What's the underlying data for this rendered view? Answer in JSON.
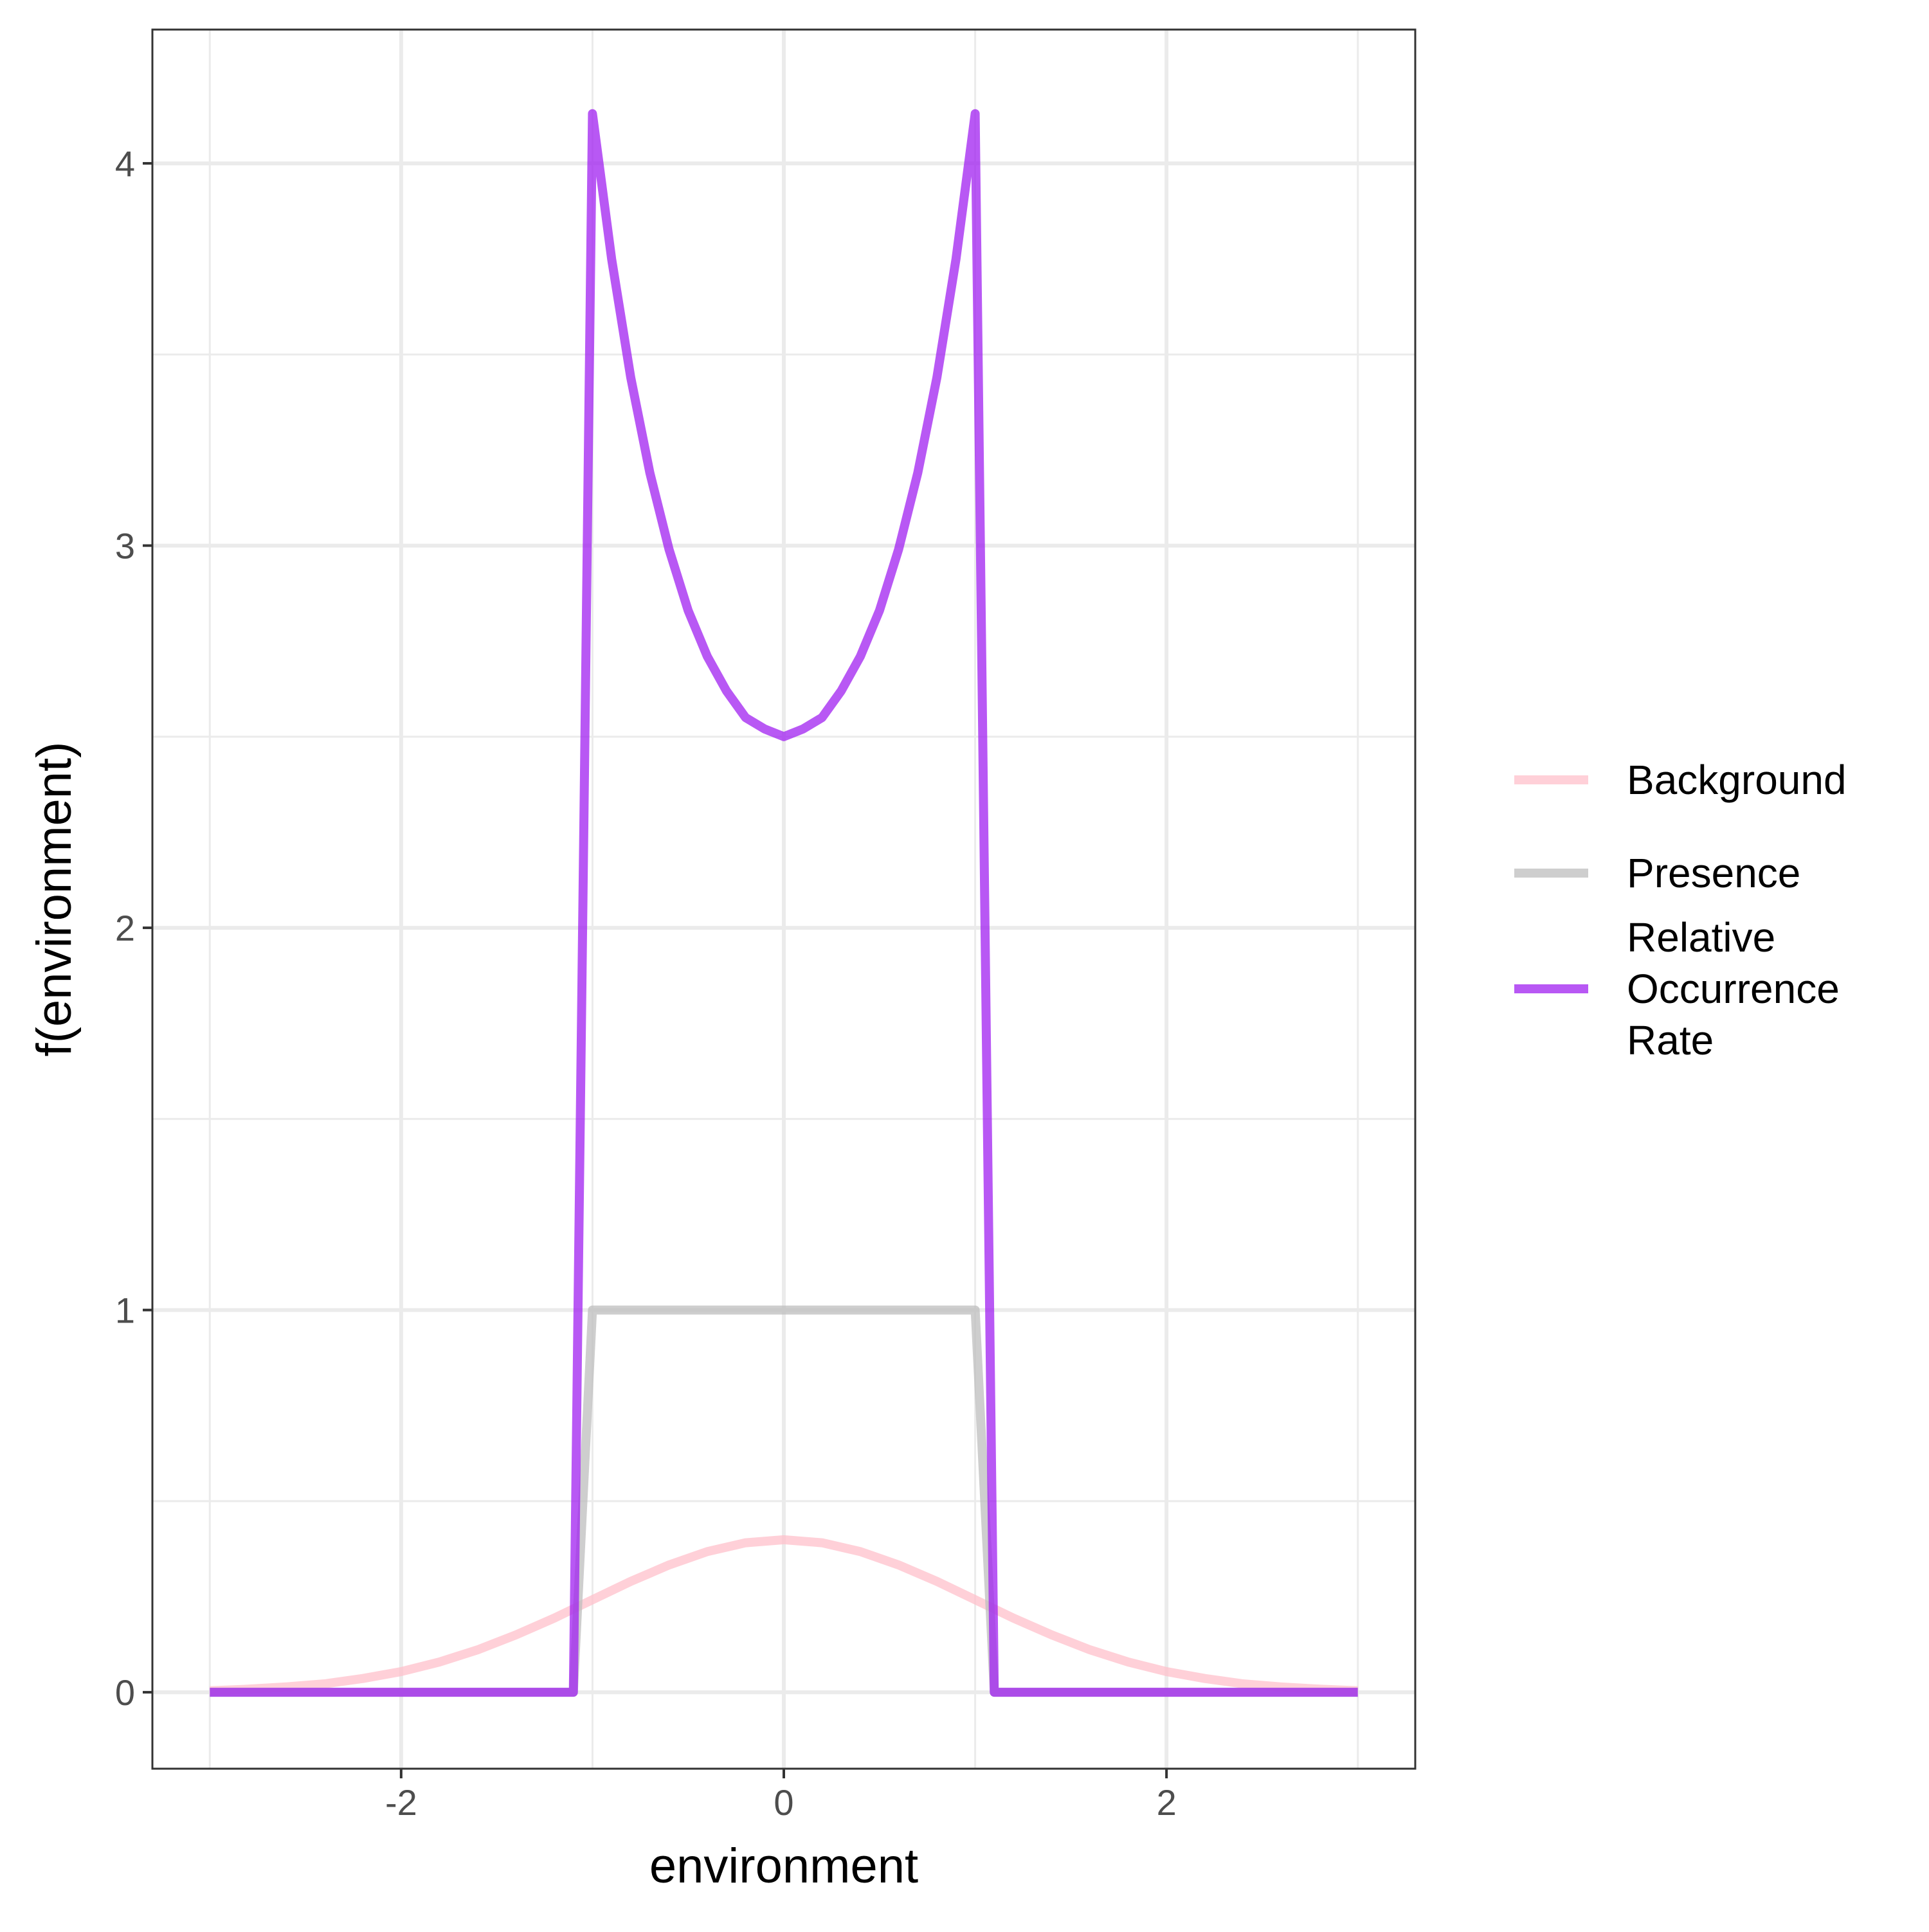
{
  "chart_data": {
    "type": "line",
    "title": "",
    "xlabel": "environment",
    "ylabel": "f(environment)",
    "xlim": [
      -3.3,
      3.3
    ],
    "ylim": [
      -0.2,
      4.35
    ],
    "x_ticks": [
      -2,
      0,
      2
    ],
    "x_tick_labels": [
      "-2",
      "0",
      "2"
    ],
    "y_ticks": [
      0,
      1,
      2,
      3,
      4
    ],
    "y_tick_labels": [
      "0",
      "1",
      "2",
      "3",
      "4"
    ],
    "x_minor_grid": [
      -3,
      -1,
      1,
      3
    ],
    "y_minor_grid": [
      0.5,
      1.5,
      2.5,
      3.5
    ],
    "grid": true,
    "legend_position": "right",
    "series": [
      {
        "name": "Background",
        "color": "#ffc0cb",
        "opacity": 0.75,
        "x": [
          -3,
          -2.8,
          -2.6,
          -2.4,
          -2.2,
          -2,
          -1.8,
          -1.6,
          -1.4,
          -1.2,
          -1,
          -0.8,
          -0.6,
          -0.4,
          -0.2,
          0,
          0.2,
          0.4,
          0.6,
          0.8,
          1,
          1.2,
          1.4,
          1.6,
          1.8,
          2,
          2.2,
          2.4,
          2.6,
          2.8,
          3
        ],
        "y": [
          0.004,
          0.008,
          0.014,
          0.022,
          0.036,
          0.054,
          0.079,
          0.111,
          0.15,
          0.194,
          0.242,
          0.29,
          0.333,
          0.368,
          0.391,
          0.399,
          0.391,
          0.368,
          0.333,
          0.29,
          0.242,
          0.194,
          0.15,
          0.111,
          0.079,
          0.054,
          0.036,
          0.022,
          0.014,
          0.008,
          0.004
        ]
      },
      {
        "name": "Presence",
        "color": "#bebebe",
        "opacity": 0.75,
        "x": [
          -3,
          -1.1,
          -1,
          1,
          1.1,
          3
        ],
        "y": [
          0,
          0,
          1,
          1,
          0,
          0
        ]
      },
      {
        "name": "Relative\nOccurrence\nRate",
        "color": "#a020f0",
        "opacity": 0.75,
        "x": [
          -3,
          -1.1,
          -1.0,
          -0.9,
          -0.8,
          -0.7,
          -0.6,
          -0.5,
          -0.4,
          -0.3,
          -0.2,
          -0.1,
          0,
          0.1,
          0.2,
          0.3,
          0.4,
          0.5,
          0.6,
          0.7,
          0.8,
          0.9,
          1.0,
          1.1,
          3
        ],
        "y": [
          0,
          0,
          4.13,
          3.75,
          3.44,
          3.19,
          2.99,
          2.83,
          2.71,
          2.62,
          2.55,
          2.52,
          2.5,
          2.52,
          2.55,
          2.62,
          2.71,
          2.83,
          2.99,
          3.19,
          3.44,
          3.75,
          4.13,
          0,
          0
        ]
      }
    ]
  },
  "legend": {
    "items": [
      {
        "lines": [
          "Background"
        ]
      },
      {
        "lines": [
          "Presence"
        ]
      },
      {
        "lines": [
          "Relative",
          "Occurrence",
          "Rate"
        ]
      }
    ]
  }
}
